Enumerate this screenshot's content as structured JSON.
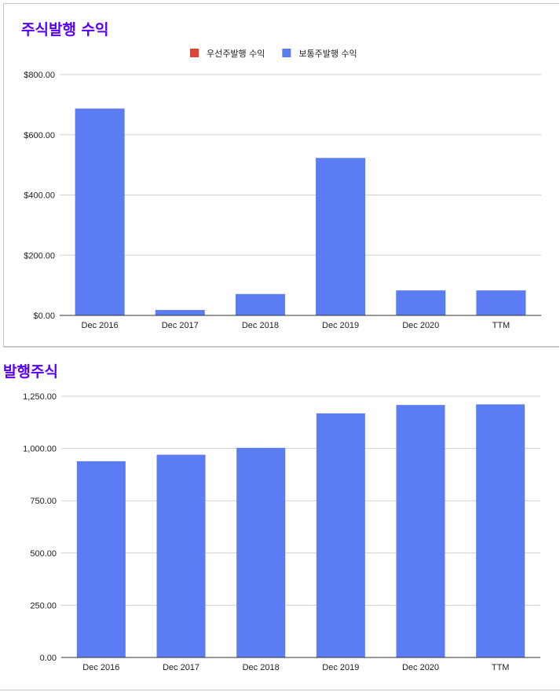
{
  "chart_data": [
    {
      "type": "bar",
      "title": "주식발행 수익",
      "categories": [
        "Dec 2016",
        "Dec 2017",
        "Dec 2018",
        "Dec 2019",
        "Dec 2020",
        "TTM"
      ],
      "series": [
        {
          "name": "우선주발행 수익",
          "color": "#db4437",
          "values": [
            0,
            0,
            0,
            0,
            0,
            0
          ]
        },
        {
          "name": "보통주발행 수익",
          "color": "#5b7cf2",
          "values": [
            687,
            18,
            71,
            523,
            83,
            83
          ]
        }
      ],
      "ylim": [
        0,
        800
      ],
      "yticks": [
        "$0.00",
        "$200.00",
        "$400.00",
        "$600.00",
        "$800.00"
      ],
      "ytick_values": [
        0,
        200,
        400,
        600,
        800
      ],
      "legend": "top-center",
      "grid": true
    },
    {
      "type": "bar",
      "title": "발행주식",
      "categories": [
        "Dec 2016",
        "Dec 2017",
        "Dec 2018",
        "Dec 2019",
        "Dec 2020",
        "TTM"
      ],
      "series": [
        {
          "color": "#5b7cf2",
          "values": [
            939,
            970,
            1003,
            1168,
            1208,
            1211
          ]
        }
      ],
      "ylim": [
        0,
        1250
      ],
      "yticks": [
        "0.00",
        "250.00",
        "500.00",
        "750.00",
        "1,000.00",
        "1,250.00"
      ],
      "ytick_values": [
        0,
        250,
        500,
        750,
        1000,
        1250
      ],
      "legend": "none",
      "grid": true
    }
  ]
}
